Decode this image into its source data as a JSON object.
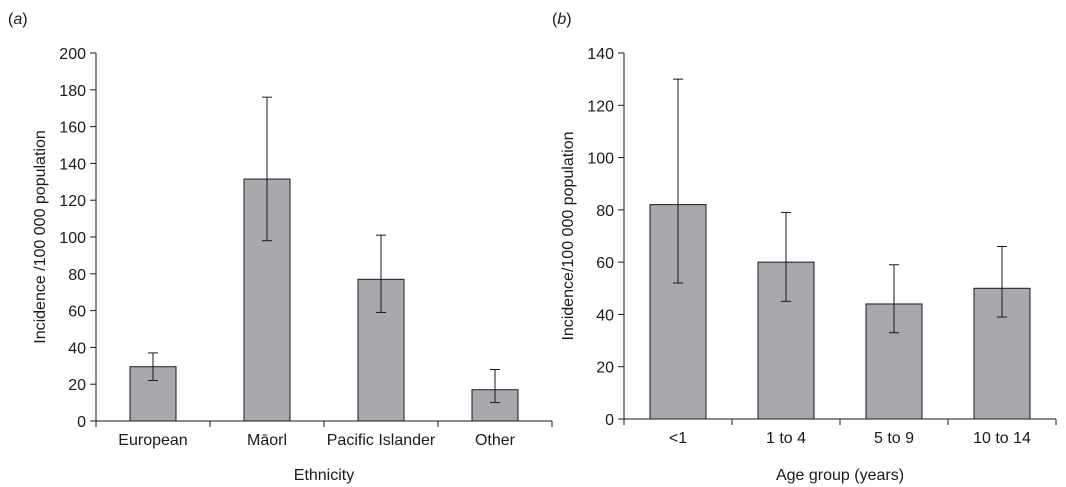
{
  "chart_data": [
    {
      "type": "bar",
      "panel_label": "(a)",
      "categories": [
        "European",
        "Māorl",
        "Pacific Islander",
        "Other"
      ],
      "values": [
        29.5,
        131.5,
        77,
        17
      ],
      "error_low": [
        22,
        98,
        59,
        10
      ],
      "error_high": [
        37,
        176,
        101,
        28
      ],
      "xlabel": "Ethnicity",
      "ylabel": "Incidence /100 000 population",
      "ylim": [
        0,
        200
      ],
      "yticks": [
        0,
        20,
        40,
        60,
        80,
        100,
        120,
        140,
        160,
        180,
        200
      ],
      "bar_color": "#a8a9ad",
      "grid": false,
      "legend": "none"
    },
    {
      "type": "bar",
      "panel_label": "(b)",
      "categories": [
        "<1",
        "1 to 4",
        "5 to 9",
        "10 to 14"
      ],
      "values": [
        82,
        60,
        44,
        50
      ],
      "error_low": [
        52,
        45,
        33,
        39
      ],
      "error_high": [
        130,
        79,
        59,
        66
      ],
      "xlabel": "Age group (years)",
      "ylabel": "Incidence/100 000 population",
      "ylim": [
        0,
        140
      ],
      "yticks": [
        0,
        20,
        40,
        60,
        80,
        100,
        120,
        140
      ],
      "bar_color": "#a8a9ad",
      "grid": false,
      "legend": "none"
    }
  ]
}
